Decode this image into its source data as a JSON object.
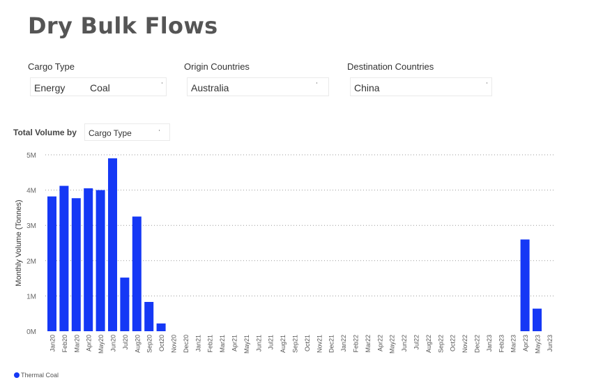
{
  "page": {
    "title": "Dry Bulk Flows"
  },
  "filters": {
    "cargo_type": {
      "label": "Cargo Type",
      "value_1": "Energy",
      "value_2": "Coal"
    },
    "origin": {
      "label": "Origin Countries",
      "value": "Australia"
    },
    "destination": {
      "label": "Destination Countries",
      "value": "China"
    }
  },
  "volume_by": {
    "label": "Total Volume by",
    "value": "Cargo Type"
  },
  "colors": {
    "bar": "#1538f5",
    "grid": "#999999"
  },
  "chart_data": {
    "type": "bar",
    "ylabel": "Monthly Volume (Tonnes)",
    "ylim": [
      0,
      5
    ],
    "yticks": [
      "0M",
      "1M",
      "2M",
      "3M",
      "4M",
      "5M"
    ],
    "grid": true,
    "legend_position": "bottom-left",
    "categories": [
      "Jan20",
      "Feb20",
      "Mar20",
      "Apr20",
      "May20",
      "Jun20",
      "Jul20",
      "Aug20",
      "Sep20",
      "Oct20",
      "Nov20",
      "Dec20",
      "Jan21",
      "Feb21",
      "Mar21",
      "Apr21",
      "May21",
      "Jun21",
      "Jul21",
      "Aug21",
      "Sep21",
      "Oct21",
      "Nov21",
      "Dec21",
      "Jan22",
      "Feb22",
      "Mar22",
      "Apr22",
      "May22",
      "Jun22",
      "Jul22",
      "Aug22",
      "Sep22",
      "Oct22",
      "Nov22",
      "Dec22",
      "Jan23",
      "Feb23",
      "Mar23",
      "Apr23",
      "May23",
      "Jun23"
    ],
    "series": [
      {
        "name": "Thermal Coal",
        "values": [
          3.82,
          4.12,
          3.77,
          4.05,
          4.0,
          4.9,
          1.52,
          3.25,
          0.83,
          0.22,
          0,
          0,
          0,
          0,
          0,
          0,
          0,
          0,
          0,
          0,
          0,
          0,
          0,
          0,
          0,
          0,
          0,
          0,
          0,
          0,
          0,
          0,
          0,
          0,
          0,
          0,
          0,
          0,
          0,
          2.6,
          0.64,
          0
        ]
      }
    ]
  }
}
